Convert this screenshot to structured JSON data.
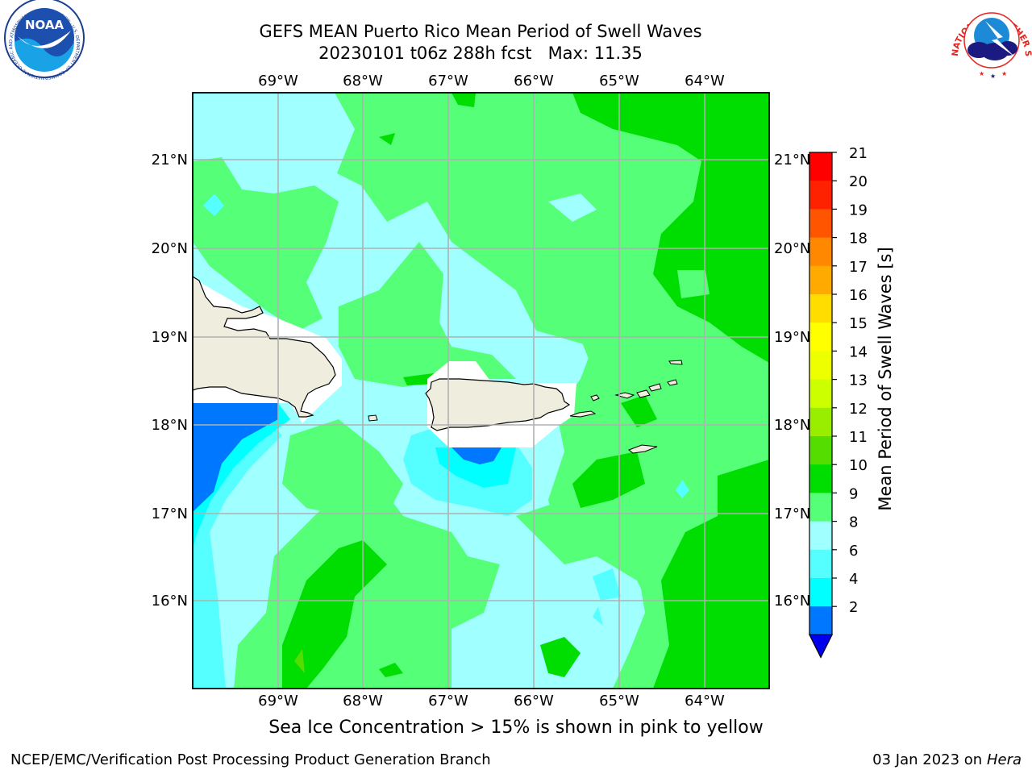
{
  "header": {
    "title_line1": "GEFS MEAN Puerto Rico Mean Period of Swell Waves",
    "title_line2": "20230101 t06z 288h fcst   Max: 11.35"
  },
  "map": {
    "lon_labels": [
      "69°W",
      "68°W",
      "67°W",
      "66°W",
      "65°W",
      "64°W"
    ],
    "lat_labels": [
      "21°N",
      "20°N",
      "19°N",
      "18°N",
      "17°N",
      "16°N"
    ],
    "lon_values": [
      -69,
      -68,
      -67,
      -66,
      -65,
      -64
    ],
    "lat_values": [
      21,
      20,
      19,
      18,
      17,
      16
    ],
    "land_color": "#efedde",
    "grid_color": "#b0b0b0"
  },
  "colorbar": {
    "label": "Mean Period of Swell Waves [s]",
    "ticks": [
      "21",
      "20",
      "19",
      "18",
      "17",
      "16",
      "15",
      "14",
      "13",
      "12",
      "11",
      "10",
      "9",
      "8",
      "6",
      "4",
      "2"
    ],
    "colors": [
      "#ff0000",
      "#ff2200",
      "#ff5500",
      "#ff8800",
      "#ffaa00",
      "#ffdd00",
      "#ffff00",
      "#eeff00",
      "#ccff00",
      "#99ee00",
      "#55dd00",
      "#00dd00",
      "#55ff77",
      "#a0ffff",
      "#55ffff",
      "#00ffff",
      "#0077ff"
    ],
    "under_color": "#0000ee"
  },
  "notes": {
    "ice": "Sea Ice Concentration > 15% is shown in pink to yellow",
    "footer_left": "NCEP/EMC/Verification Post Processing Product Generation Branch",
    "footer_date": "03 Jan 2023 on ",
    "footer_machine": "Hera"
  },
  "logos": {
    "noaa_text": "NOAA",
    "noaa_ring_text": "NATIONAL OCEANIC AND ATMOSPHERIC ADMINISTRATION · U.S. DEPARTMENT OF COMMERCE",
    "nws_ring_text": "NATIONAL WEATHER SERVICE"
  }
}
